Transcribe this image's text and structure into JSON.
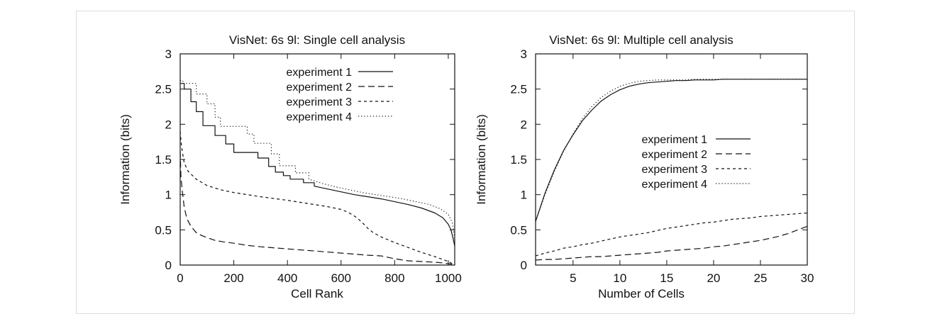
{
  "chart_data": [
    {
      "type": "line",
      "title": "VisNet: 6s 9l: Single cell analysis",
      "xlabel": "Cell Rank",
      "ylabel": "Information (bits)",
      "xlim": [
        0,
        1024
      ],
      "ylim": [
        0,
        3
      ],
      "xticks": [
        0,
        200,
        400,
        600,
        800,
        1000
      ],
      "yticks": [
        0,
        0.5,
        1,
        1.5,
        2,
        2.5,
        3
      ],
      "xtick_labels": [
        "0",
        "200",
        "400",
        "600",
        "800",
        "1000"
      ],
      "ytick_labels": [
        "0",
        "0.5",
        "1",
        "1.5",
        "2",
        "2.5",
        "3"
      ],
      "grid": false,
      "legend_position": "top-right",
      "series": [
        {
          "name": "experiment 1",
          "x": [
            0,
            15,
            15,
            40,
            40,
            60,
            60,
            85,
            85,
            130,
            130,
            170,
            170,
            200,
            200,
            290,
            290,
            330,
            330,
            355,
            355,
            385,
            385,
            410,
            410,
            460,
            460,
            500,
            500,
            550,
            600,
            650,
            700,
            750,
            800,
            850,
            900,
            950,
            980,
            1000,
            1010,
            1018,
            1024
          ],
          "y": [
            2.58,
            2.58,
            2.5,
            2.5,
            2.32,
            2.32,
            2.18,
            2.18,
            1.98,
            1.98,
            1.84,
            1.84,
            1.72,
            1.72,
            1.6,
            1.6,
            1.52,
            1.52,
            1.4,
            1.4,
            1.32,
            1.32,
            1.27,
            1.27,
            1.22,
            1.22,
            1.17,
            1.17,
            1.12,
            1.08,
            1.04,
            1.0,
            0.97,
            0.94,
            0.9,
            0.86,
            0.81,
            0.74,
            0.67,
            0.58,
            0.5,
            0.38,
            0.27
          ]
        },
        {
          "name": "experiment 2",
          "x": [
            0,
            3,
            8,
            15,
            25,
            40,
            60,
            80,
            100,
            130,
            160,
            200,
            250,
            300,
            400,
            500,
            600,
            700,
            750,
            800,
            850,
            900,
            950,
            980,
            1000,
            1010,
            1018
          ],
          "y": [
            1.62,
            1.25,
            1.05,
            0.82,
            0.66,
            0.55,
            0.46,
            0.42,
            0.39,
            0.35,
            0.33,
            0.31,
            0.28,
            0.26,
            0.23,
            0.2,
            0.17,
            0.14,
            0.13,
            0.09,
            0.06,
            0.05,
            0.04,
            0.03,
            0.02,
            0.015,
            0.0
          ]
        },
        {
          "name": "experiment 3",
          "x": [
            0,
            5,
            15,
            30,
            60,
            100,
            150,
            200,
            300,
            400,
            500,
            550,
            600,
            620,
            640,
            660,
            680,
            700,
            720,
            750,
            800,
            850,
            900,
            950,
            980,
            1000,
            1015,
            1024
          ],
          "y": [
            1.9,
            1.68,
            1.45,
            1.33,
            1.22,
            1.13,
            1.07,
            1.03,
            0.97,
            0.92,
            0.86,
            0.83,
            0.79,
            0.76,
            0.72,
            0.67,
            0.6,
            0.52,
            0.46,
            0.4,
            0.32,
            0.25,
            0.18,
            0.12,
            0.08,
            0.05,
            0.02,
            0.0
          ]
        },
        {
          "name": "experiment 4",
          "x": [
            0,
            10,
            10,
            60,
            60,
            100,
            100,
            130,
            130,
            150,
            150,
            250,
            250,
            275,
            275,
            340,
            340,
            370,
            370,
            430,
            430,
            480,
            480,
            530,
            580,
            630,
            680,
            730,
            780,
            830,
            880,
            930,
            970,
            1000,
            1015,
            1024
          ],
          "y": [
            2.62,
            2.62,
            2.58,
            2.58,
            2.43,
            2.43,
            2.29,
            2.29,
            2.1,
            2.1,
            1.97,
            1.97,
            1.86,
            1.86,
            1.73,
            1.73,
            1.58,
            1.58,
            1.41,
            1.41,
            1.31,
            1.31,
            1.22,
            1.16,
            1.11,
            1.07,
            1.03,
            1.0,
            0.97,
            0.94,
            0.9,
            0.86,
            0.8,
            0.72,
            0.6,
            0.38
          ]
        }
      ]
    },
    {
      "type": "line",
      "title": "VisNet: 6s 9l: Multiple cell analysis",
      "xlabel": "Number of Cells",
      "ylabel": "Information (bits)",
      "xlim": [
        1,
        30
      ],
      "ylim": [
        0,
        3
      ],
      "xticks": [
        5,
        10,
        15,
        20,
        25,
        30
      ],
      "yticks": [
        0,
        0.5,
        1,
        1.5,
        2,
        2.5,
        3
      ],
      "xtick_labels": [
        "5",
        "10",
        "15",
        "20",
        "25",
        "30"
      ],
      "ytick_labels": [
        "0",
        "0.5",
        "1",
        "1.5",
        "2",
        "2.5",
        "3"
      ],
      "grid": false,
      "legend_position": "center-right",
      "series": [
        {
          "name": "experiment 1",
          "x": [
            1,
            2,
            3,
            4,
            5,
            6,
            7,
            8,
            9,
            10,
            11,
            12,
            13,
            14,
            15,
            16,
            17,
            18,
            19,
            20,
            21,
            22,
            23,
            24,
            25,
            26,
            27,
            28,
            29,
            30
          ],
          "y": [
            0.62,
            1.02,
            1.35,
            1.63,
            1.85,
            2.05,
            2.2,
            2.33,
            2.42,
            2.49,
            2.54,
            2.57,
            2.59,
            2.6,
            2.61,
            2.62,
            2.62,
            2.63,
            2.63,
            2.63,
            2.64,
            2.64,
            2.64,
            2.64,
            2.64,
            2.64,
            2.64,
            2.64,
            2.64,
            2.64
          ]
        },
        {
          "name": "experiment 2",
          "x": [
            1,
            2,
            3,
            4,
            5,
            6,
            7,
            8,
            9,
            10,
            11,
            12,
            13,
            14,
            15,
            16,
            17,
            18,
            19,
            20,
            21,
            22,
            23,
            24,
            25,
            26,
            27,
            28,
            29,
            30
          ],
          "y": [
            0.07,
            0.08,
            0.08,
            0.09,
            0.1,
            0.11,
            0.12,
            0.12,
            0.13,
            0.14,
            0.15,
            0.16,
            0.17,
            0.18,
            0.2,
            0.21,
            0.22,
            0.23,
            0.24,
            0.26,
            0.27,
            0.29,
            0.31,
            0.33,
            0.35,
            0.38,
            0.41,
            0.45,
            0.5,
            0.55
          ]
        },
        {
          "name": "experiment 3",
          "x": [
            1,
            2,
            3,
            4,
            5,
            6,
            7,
            8,
            9,
            10,
            11,
            12,
            13,
            14,
            15,
            16,
            17,
            18,
            19,
            20,
            21,
            22,
            23,
            24,
            25,
            26,
            27,
            28,
            29,
            30
          ],
          "y": [
            0.13,
            0.17,
            0.2,
            0.24,
            0.26,
            0.29,
            0.31,
            0.34,
            0.37,
            0.4,
            0.42,
            0.44,
            0.46,
            0.49,
            0.52,
            0.54,
            0.56,
            0.58,
            0.6,
            0.61,
            0.63,
            0.65,
            0.66,
            0.67,
            0.69,
            0.7,
            0.71,
            0.72,
            0.73,
            0.74
          ]
        },
        {
          "name": "experiment 4",
          "x": [
            1,
            2,
            3,
            4,
            5,
            6,
            7,
            8,
            9,
            10,
            11,
            12,
            13,
            14,
            15,
            16,
            17,
            18,
            19,
            20,
            21,
            22,
            23,
            24,
            25,
            26,
            27,
            28,
            29,
            30
          ],
          "y": [
            0.62,
            1.0,
            1.33,
            1.62,
            1.86,
            2.08,
            2.25,
            2.38,
            2.47,
            2.54,
            2.58,
            2.61,
            2.62,
            2.63,
            2.63,
            2.63,
            2.63,
            2.64,
            2.64,
            2.64,
            2.64,
            2.64,
            2.64,
            2.64,
            2.64,
            2.64,
            2.64,
            2.64,
            2.64,
            2.64
          ]
        }
      ]
    }
  ]
}
